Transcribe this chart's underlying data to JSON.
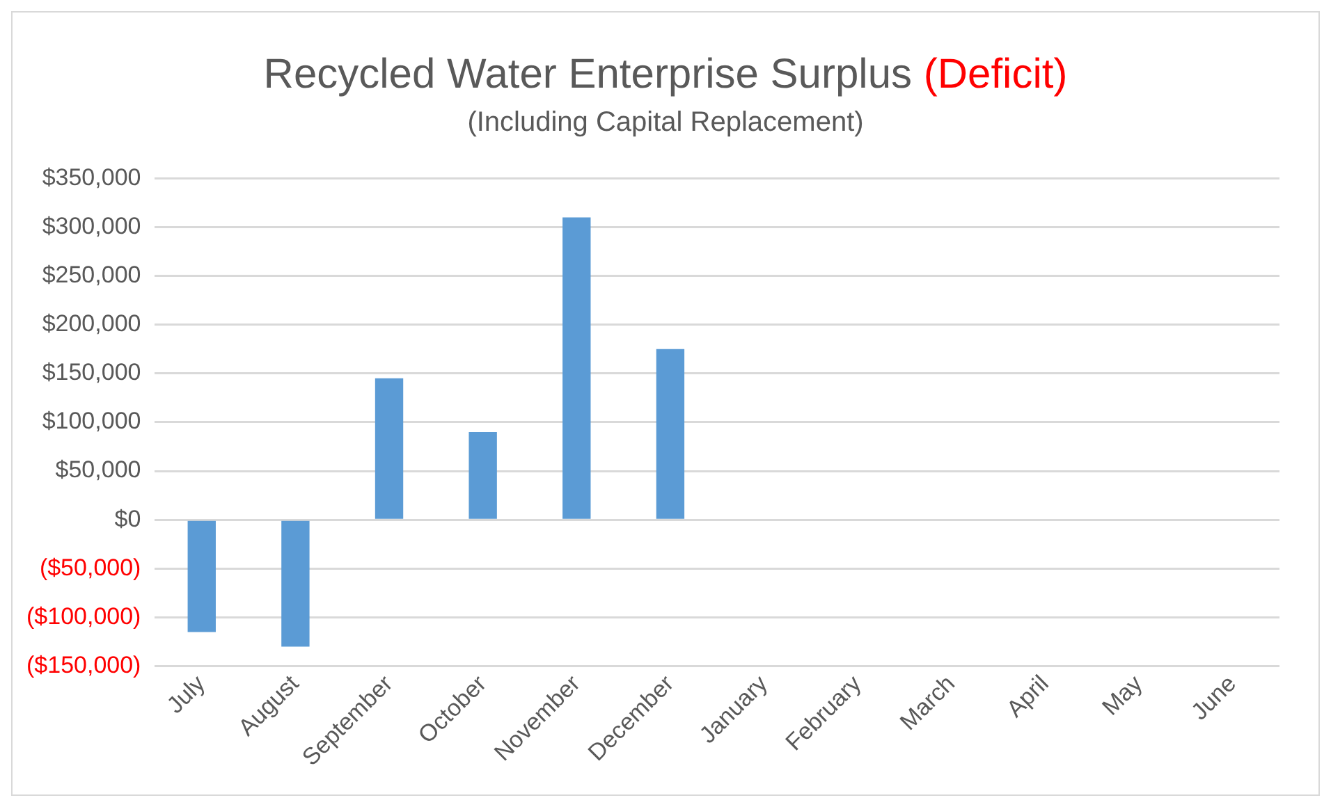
{
  "chart_data": {
    "type": "bar",
    "title": "Recycled Water Enterprise Surplus (Deficit)",
    "subtitle": "(Including Capital Replacement)",
    "categories": [
      "July",
      "August",
      "September",
      "October",
      "November",
      "December",
      "January",
      "February",
      "March",
      "April",
      "May",
      "June"
    ],
    "values": [
      -115000,
      -130000,
      145000,
      90000,
      310000,
      175000,
      null,
      null,
      null,
      null,
      null,
      null
    ],
    "color": "#5b9bd5",
    "ylim": [
      -150000,
      350000
    ],
    "yticks": [
      {
        "value": -150000,
        "label": "($150,000)"
      },
      {
        "value": -100000,
        "label": "($100,000)"
      },
      {
        "value": -50000,
        "label": "($50,000)"
      },
      {
        "value": 0,
        "label": "$0"
      },
      {
        "value": 50000,
        "label": "$50,000"
      },
      {
        "value": 100000,
        "label": "$100,000"
      },
      {
        "value": 150000,
        "label": "$150,000"
      },
      {
        "value": 200000,
        "label": "$200,000"
      },
      {
        "value": 250000,
        "label": "$250,000"
      },
      {
        "value": 300000,
        "label": "$300,000"
      },
      {
        "value": 350000,
        "label": "$350,000"
      }
    ],
    "grid": "y"
  }
}
